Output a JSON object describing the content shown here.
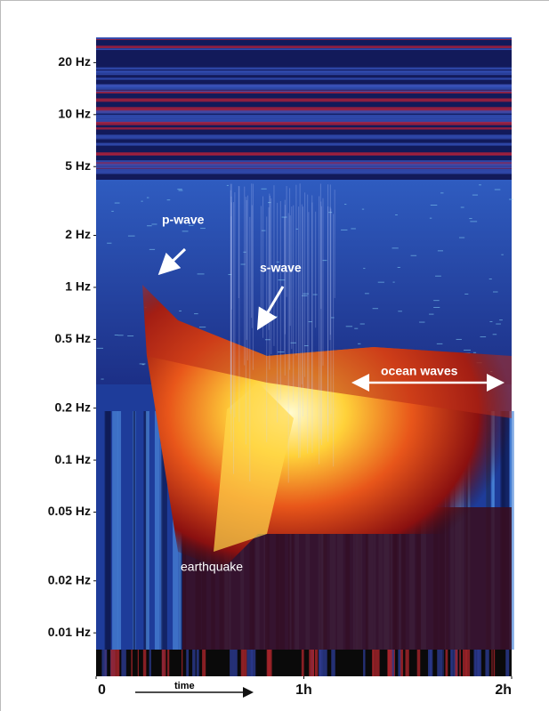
{
  "chart_data": {
    "type": "spectrogram",
    "yscale": "log",
    "ylim": [
      0.008,
      28
    ],
    "yticks": [
      {
        "value": 20,
        "label": "20 Hz"
      },
      {
        "value": 10,
        "label": "10 Hz"
      },
      {
        "value": 5,
        "label": "5 Hz"
      },
      {
        "value": 2,
        "label": "2 Hz"
      },
      {
        "value": 1,
        "label": "1 Hz"
      },
      {
        "value": 0.5,
        "label": "0.5 Hz"
      },
      {
        "value": 0.2,
        "label": "0.2 Hz"
      },
      {
        "value": 0.1,
        "label": "0.1 Hz"
      },
      {
        "value": 0.05,
        "label": "0.05 Hz"
      },
      {
        "value": 0.02,
        "label": "0.02 Hz"
      },
      {
        "value": 0.01,
        "label": "0.01 Hz"
      }
    ],
    "xlim": [
      0,
      2
    ],
    "xticks": [
      0,
      {
        "value": 1,
        "label": "1h"
      },
      {
        "value": 2,
        "label": "2h"
      }
    ],
    "xlabel": "time",
    "annotations": [
      "p-wave",
      "s-wave",
      "ocean waves",
      "earthquake"
    ]
  }
}
